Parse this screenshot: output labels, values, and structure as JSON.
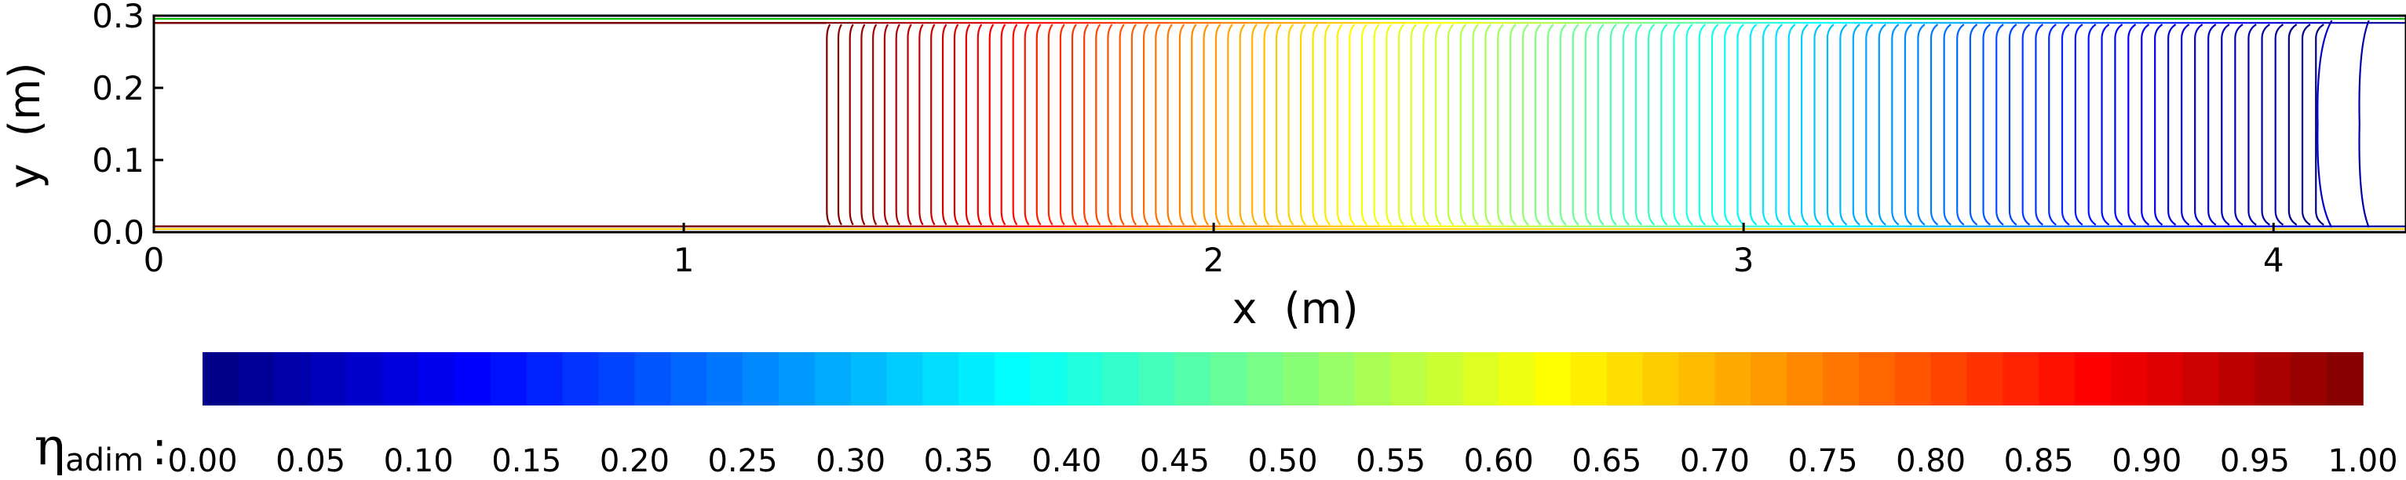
{
  "chart_data": {
    "type": "contour",
    "xlabel": "x  (m)",
    "ylabel": "y  (m)",
    "xlim": [
      0,
      4.25
    ],
    "ylim": [
      0,
      0.3
    ],
    "x_ticks": [
      "0",
      "1",
      "2",
      "3",
      "4"
    ],
    "y_ticks": [
      "0.0",
      "0.1",
      "0.2",
      "0.3"
    ],
    "grid": false,
    "colormap": "jet",
    "colorbar": {
      "label_main": "η",
      "label_sub": "adim",
      "label_sep": ":",
      "levels": [
        0.0,
        0.05,
        0.1,
        0.15,
        0.2,
        0.25,
        0.3,
        0.35,
        0.4,
        0.45,
        0.5,
        0.55,
        0.6,
        0.65,
        0.7,
        0.75,
        0.8,
        0.85,
        0.9,
        0.95,
        1.0
      ],
      "tick_labels": [
        "0.00",
        "0.05",
        "0.10",
        "0.15",
        "0.20",
        "0.25",
        "0.30",
        "0.35",
        "0.40",
        "0.45",
        "0.50",
        "0.55",
        "0.60",
        "0.65",
        "0.70",
        "0.75",
        "0.80",
        "0.85",
        "0.90",
        "0.95",
        "1.00"
      ],
      "placement": "bottom"
    },
    "contours": {
      "front_start_x": 1.27,
      "front_end_x": 4.08,
      "line_count": 120,
      "wall_top_y": 0.29,
      "wall_bottom_y": 0.008,
      "inlet_value": 1.0,
      "outlet_value": 0.0
    }
  }
}
